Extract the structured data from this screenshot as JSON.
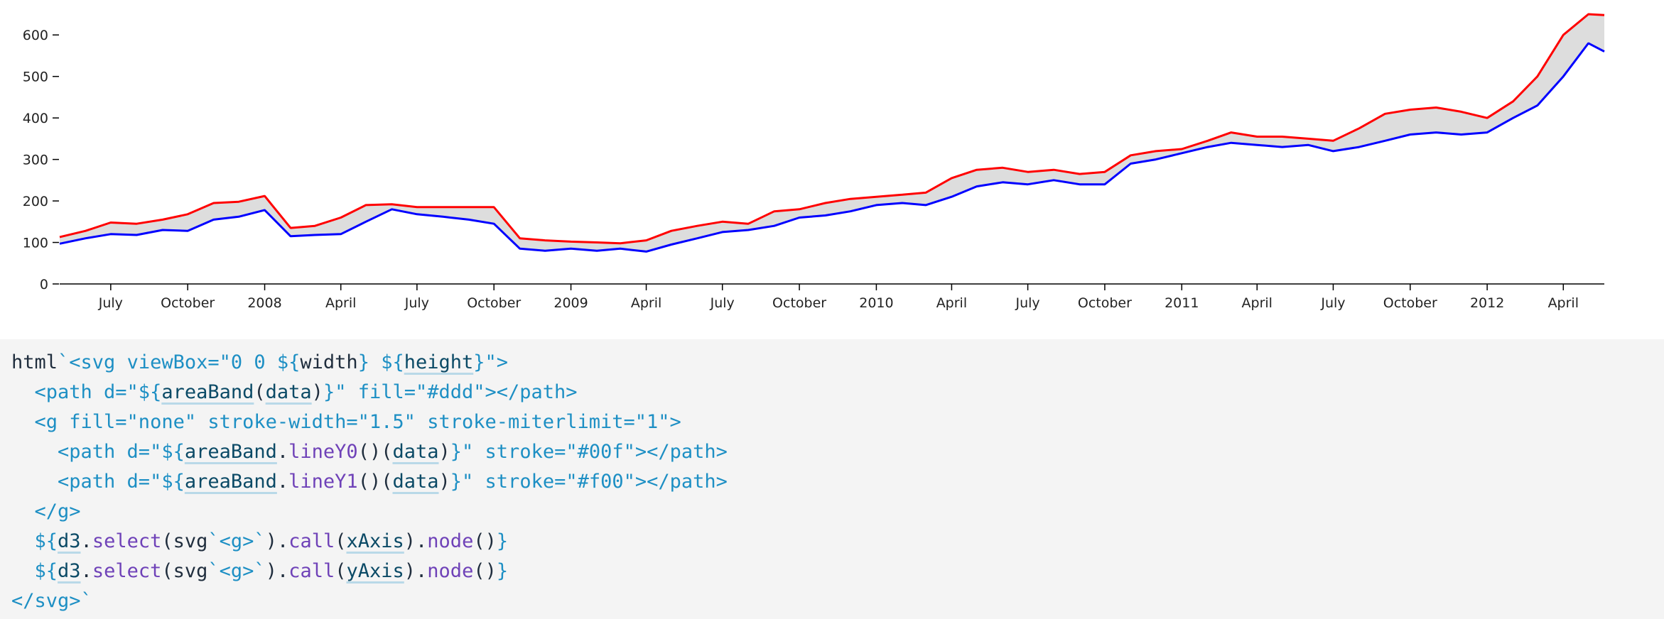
{
  "chart_data": {
    "type": "area",
    "xlabel": "",
    "ylabel": "",
    "ylim": [
      0,
      650
    ],
    "xlim": [
      "2007-05-01",
      "2012-05-20"
    ],
    "yticks": [
      0,
      100,
      200,
      300,
      400,
      500,
      600
    ],
    "xticks": [
      {
        "date": "2007-07-01",
        "label": "July"
      },
      {
        "date": "2007-10-01",
        "label": "October"
      },
      {
        "date": "2008-01-01",
        "label": "2008"
      },
      {
        "date": "2008-04-01",
        "label": "April"
      },
      {
        "date": "2008-07-01",
        "label": "July"
      },
      {
        "date": "2008-10-01",
        "label": "October"
      },
      {
        "date": "2009-01-01",
        "label": "2009"
      },
      {
        "date": "2009-04-01",
        "label": "April"
      },
      {
        "date": "2009-07-01",
        "label": "July"
      },
      {
        "date": "2009-10-01",
        "label": "October"
      },
      {
        "date": "2010-01-01",
        "label": "2010"
      },
      {
        "date": "2010-04-01",
        "label": "April"
      },
      {
        "date": "2010-07-01",
        "label": "July"
      },
      {
        "date": "2010-10-01",
        "label": "October"
      },
      {
        "date": "2011-01-01",
        "label": "2011"
      },
      {
        "date": "2011-04-01",
        "label": "April"
      },
      {
        "date": "2011-07-01",
        "label": "July"
      },
      {
        "date": "2011-10-01",
        "label": "October"
      },
      {
        "date": "2012-01-01",
        "label": "2012"
      },
      {
        "date": "2012-04-01",
        "label": "April"
      }
    ],
    "x": [
      "2007-05-01",
      "2007-06-01",
      "2007-07-01",
      "2007-08-01",
      "2007-09-01",
      "2007-10-01",
      "2007-11-01",
      "2007-12-01",
      "2008-01-01",
      "2008-02-01",
      "2008-03-01",
      "2008-04-01",
      "2008-05-01",
      "2008-06-01",
      "2008-07-01",
      "2008-08-01",
      "2008-09-01",
      "2008-10-01",
      "2008-11-01",
      "2008-12-01",
      "2009-01-01",
      "2009-02-01",
      "2009-03-01",
      "2009-04-01",
      "2009-05-01",
      "2009-06-01",
      "2009-07-01",
      "2009-08-01",
      "2009-09-01",
      "2009-10-01",
      "2009-11-01",
      "2009-12-01",
      "2010-01-01",
      "2010-02-01",
      "2010-03-01",
      "2010-04-01",
      "2010-05-01",
      "2010-06-01",
      "2010-07-01",
      "2010-08-01",
      "2010-09-01",
      "2010-10-01",
      "2010-11-01",
      "2010-12-01",
      "2011-01-01",
      "2011-02-01",
      "2011-03-01",
      "2011-04-01",
      "2011-05-01",
      "2011-06-01",
      "2011-07-01",
      "2011-08-01",
      "2011-09-01",
      "2011-10-01",
      "2011-11-01",
      "2011-12-01",
      "2012-01-01",
      "2012-02-01",
      "2012-03-01",
      "2012-04-01",
      "2012-05-01",
      "2012-05-20"
    ],
    "series": [
      {
        "values": [
          97,
          110,
          120,
          118,
          130,
          128,
          155,
          162,
          178,
          115,
          118,
          120,
          150,
          180,
          168,
          162,
          155,
          145,
          85,
          80,
          85,
          80,
          85,
          78,
          95,
          110,
          125,
          130,
          140,
          160,
          165,
          175,
          190,
          195,
          190,
          210,
          235,
          245,
          240,
          250,
          240,
          240,
          290,
          300,
          315,
          330,
          340,
          335,
          330,
          335,
          320,
          330,
          345,
          360,
          365,
          360,
          365,
          400,
          430,
          500,
          580,
          560
        ]
      },
      {
        "values": [
          113,
          128,
          148,
          145,
          155,
          168,
          195,
          198,
          212,
          135,
          140,
          160,
          190,
          192,
          185,
          185,
          185,
          185,
          110,
          105,
          102,
          100,
          98,
          105,
          128,
          140,
          150,
          145,
          175,
          180,
          195,
          205,
          210,
          215,
          220,
          255,
          275,
          280,
          270,
          275,
          265,
          270,
          310,
          320,
          325,
          345,
          365,
          355,
          355,
          350,
          345,
          375,
          410,
          420,
          425,
          415,
          400,
          440,
          500,
          600,
          650,
          648
        ]
      }
    ]
  },
  "code": {
    "lines": [
      [
        {
          "t": "html",
          "c": "dark"
        },
        {
          "t": "`<svg viewBox=\"0 0 ${",
          "c": "plain"
        },
        {
          "t": "width",
          "c": "dark"
        },
        {
          "t": "} ${",
          "c": "plain"
        },
        {
          "t": "height",
          "c": "ref"
        },
        {
          "t": "}\">",
          "c": "plain"
        }
      ],
      [
        {
          "t": "  <path d=\"${",
          "c": "plain"
        },
        {
          "t": "areaBand",
          "c": "ref"
        },
        {
          "t": "(",
          "c": "dark"
        },
        {
          "t": "data",
          "c": "ref"
        },
        {
          "t": ")",
          "c": "dark"
        },
        {
          "t": "}\" fill=\"#ddd\"></path>",
          "c": "plain"
        }
      ],
      [
        {
          "t": "  <g fill=\"none\" stroke-width=\"1.5\" stroke-miterlimit=\"1\">",
          "c": "plain"
        }
      ],
      [
        {
          "t": "    <path d=\"${",
          "c": "plain"
        },
        {
          "t": "areaBand",
          "c": "ref"
        },
        {
          "t": ".",
          "c": "dark"
        },
        {
          "t": "lineY0",
          "c": "fn"
        },
        {
          "t": "()(",
          "c": "dark"
        },
        {
          "t": "data",
          "c": "ref"
        },
        {
          "t": ")",
          "c": "dark"
        },
        {
          "t": "}\" stroke=\"#00f\"></path>",
          "c": "plain"
        }
      ],
      [
        {
          "t": "    <path d=\"${",
          "c": "plain"
        },
        {
          "t": "areaBand",
          "c": "ref"
        },
        {
          "t": ".",
          "c": "dark"
        },
        {
          "t": "lineY1",
          "c": "fn"
        },
        {
          "t": "()(",
          "c": "dark"
        },
        {
          "t": "data",
          "c": "ref"
        },
        {
          "t": ")",
          "c": "dark"
        },
        {
          "t": "}\" stroke=\"#f00\"></path>",
          "c": "plain"
        }
      ],
      [
        {
          "t": "  </g>",
          "c": "plain"
        }
      ],
      [
        {
          "t": "  ${",
          "c": "plain"
        },
        {
          "t": "d3",
          "c": "ref"
        },
        {
          "t": ".",
          "c": "dark"
        },
        {
          "t": "select",
          "c": "fn"
        },
        {
          "t": "(",
          "c": "dark"
        },
        {
          "t": "svg",
          "c": "dark"
        },
        {
          "t": "`<g>`",
          "c": "plain"
        },
        {
          "t": ").",
          "c": "dark"
        },
        {
          "t": "call",
          "c": "fn"
        },
        {
          "t": "(",
          "c": "dark"
        },
        {
          "t": "xAxis",
          "c": "ref"
        },
        {
          "t": ").",
          "c": "dark"
        },
        {
          "t": "node",
          "c": "fn"
        },
        {
          "t": "()",
          "c": "dark"
        },
        {
          "t": "}",
          "c": "plain"
        }
      ],
      [
        {
          "t": "  ${",
          "c": "plain"
        },
        {
          "t": "d3",
          "c": "ref"
        },
        {
          "t": ".",
          "c": "dark"
        },
        {
          "t": "select",
          "c": "fn"
        },
        {
          "t": "(",
          "c": "dark"
        },
        {
          "t": "svg",
          "c": "dark"
        },
        {
          "t": "`<g>`",
          "c": "plain"
        },
        {
          "t": ").",
          "c": "dark"
        },
        {
          "t": "call",
          "c": "fn"
        },
        {
          "t": "(",
          "c": "dark"
        },
        {
          "t": "yAxis",
          "c": "ref"
        },
        {
          "t": ").",
          "c": "dark"
        },
        {
          "t": "node",
          "c": "fn"
        },
        {
          "t": "()",
          "c": "dark"
        },
        {
          "t": "}",
          "c": "plain"
        }
      ],
      [
        {
          "t": "</svg>`",
          "c": "plain"
        }
      ]
    ]
  },
  "colors": {
    "band_fill": "#dddddd",
    "low_line": "#0000ff",
    "high_line": "#ff0000",
    "axis": "#000000",
    "code_bg": "#f4f4f4"
  }
}
